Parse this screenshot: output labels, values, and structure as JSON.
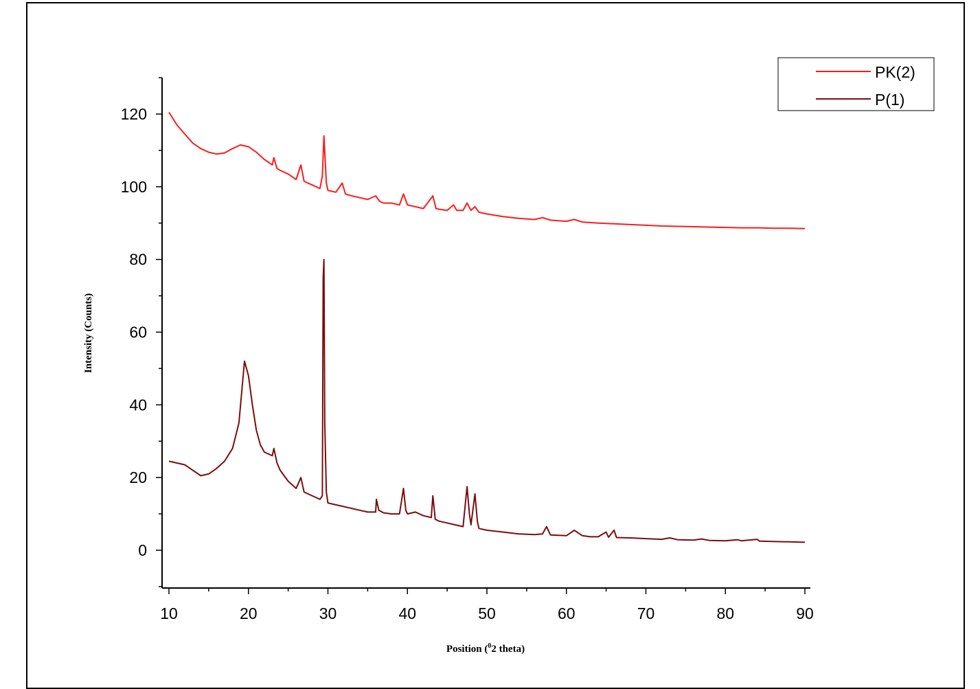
{
  "chart_data": {
    "type": "line",
    "xlabel": "Position (",
    "xlabel_sup": "0",
    "xlabel_rest": "2 theta)",
    "ylabel": "Intensity (Counts)",
    "xlim": [
      10,
      90
    ],
    "ylim": [
      -10,
      130
    ],
    "x_ticks": [
      "10",
      "20",
      "30",
      "40",
      "50",
      "60",
      "70",
      "80",
      "90"
    ],
    "y_ticks": [
      "0",
      "20",
      "40",
      "60",
      "80",
      "100",
      "120"
    ],
    "legend_position": "top-right",
    "series": [
      {
        "name": "PK(2)",
        "color": "#ff1a1a",
        "points": [
          [
            10,
            120.5
          ],
          [
            11,
            117
          ],
          [
            12,
            114.5
          ],
          [
            13,
            112
          ],
          [
            14,
            110.5
          ],
          [
            15,
            109.5
          ],
          [
            16,
            109
          ],
          [
            17,
            109.3
          ],
          [
            18,
            110.5
          ],
          [
            19,
            111.5
          ],
          [
            20,
            111
          ],
          [
            21,
            109.5
          ],
          [
            22,
            107.5
          ],
          [
            23,
            106
          ],
          [
            23.2,
            108
          ],
          [
            23.6,
            105
          ],
          [
            24,
            104.5
          ],
          [
            25,
            103.5
          ],
          [
            26,
            102
          ],
          [
            26.6,
            106
          ],
          [
            27,
            101.5
          ],
          [
            28,
            100.5
          ],
          [
            29,
            99.5
          ],
          [
            29.3,
            103
          ],
          [
            29.5,
            114
          ],
          [
            29.8,
            101
          ],
          [
            30,
            99
          ],
          [
            31,
            98.5
          ],
          [
            31.8,
            101
          ],
          [
            32.2,
            98
          ],
          [
            33,
            97.5
          ],
          [
            34,
            97
          ],
          [
            35,
            96.5
          ],
          [
            36,
            97.5
          ],
          [
            36.5,
            96
          ],
          [
            37,
            95.5
          ],
          [
            38,
            95.5
          ],
          [
            39,
            95
          ],
          [
            39.5,
            98
          ],
          [
            40,
            95
          ],
          [
            41,
            94.5
          ],
          [
            42,
            94
          ],
          [
            43.2,
            97.5
          ],
          [
            43.6,
            94
          ],
          [
            44,
            93.8
          ],
          [
            45,
            93.5
          ],
          [
            45.8,
            95
          ],
          [
            46.2,
            93.5
          ],
          [
            47,
            93.5
          ],
          [
            47.5,
            95.5
          ],
          [
            48,
            93.5
          ],
          [
            48.5,
            94.5
          ],
          [
            49,
            93
          ],
          [
            50,
            92.5
          ],
          [
            52,
            91.8
          ],
          [
            54,
            91.3
          ],
          [
            56,
            91
          ],
          [
            57,
            91.5
          ],
          [
            58,
            90.8
          ],
          [
            60,
            90.5
          ],
          [
            61,
            91
          ],
          [
            62,
            90.3
          ],
          [
            64,
            90
          ],
          [
            66,
            89.8
          ],
          [
            68,
            89.6
          ],
          [
            70,
            89.4
          ],
          [
            72,
            89.2
          ],
          [
            74,
            89.1
          ],
          [
            76,
            89
          ],
          [
            78,
            88.9
          ],
          [
            80,
            88.8
          ],
          [
            82,
            88.7
          ],
          [
            84,
            88.7
          ],
          [
            86,
            88.6
          ],
          [
            88,
            88.6
          ],
          [
            90,
            88.5
          ]
        ]
      },
      {
        "name": "P(1)",
        "color": "#7a0c0c",
        "points": [
          [
            10,
            24.5
          ],
          [
            11,
            24
          ],
          [
            12,
            23.5
          ],
          [
            13,
            22
          ],
          [
            14,
            20.5
          ],
          [
            15,
            21
          ],
          [
            16,
            22.5
          ],
          [
            17,
            24.5
          ],
          [
            18,
            28
          ],
          [
            18.8,
            35
          ],
          [
            19.5,
            52
          ],
          [
            20,
            48
          ],
          [
            20.5,
            40
          ],
          [
            21,
            33
          ],
          [
            21.5,
            29
          ],
          [
            22,
            27
          ],
          [
            23,
            26
          ],
          [
            23.2,
            28
          ],
          [
            23.6,
            24
          ],
          [
            24,
            22
          ],
          [
            25,
            19
          ],
          [
            26,
            17
          ],
          [
            26.6,
            20
          ],
          [
            27,
            16
          ],
          [
            28,
            15
          ],
          [
            29,
            14
          ],
          [
            29.3,
            15
          ],
          [
            29.4,
            75
          ],
          [
            29.5,
            80
          ],
          [
            29.6,
            35
          ],
          [
            29.8,
            16
          ],
          [
            30,
            13
          ],
          [
            31,
            12.5
          ],
          [
            32,
            12
          ],
          [
            33,
            11.5
          ],
          [
            34,
            11
          ],
          [
            35,
            10.5
          ],
          [
            36,
            10.5
          ],
          [
            36.1,
            14
          ],
          [
            36.4,
            11
          ],
          [
            37,
            10.3
          ],
          [
            38,
            10
          ],
          [
            39,
            10
          ],
          [
            39.5,
            17
          ],
          [
            39.8,
            11
          ],
          [
            40,
            10
          ],
          [
            41,
            10.5
          ],
          [
            42,
            9.5
          ],
          [
            43,
            9
          ],
          [
            43.2,
            15
          ],
          [
            43.5,
            8.5
          ],
          [
            44,
            8
          ],
          [
            45,
            7.5
          ],
          [
            46,
            7
          ],
          [
            47,
            6.5
          ],
          [
            47.5,
            17.5
          ],
          [
            47.8,
            10
          ],
          [
            48,
            7
          ],
          [
            48.5,
            15.5
          ],
          [
            48.8,
            8
          ],
          [
            49,
            6
          ],
          [
            50,
            5.5
          ],
          [
            52,
            5
          ],
          [
            54,
            4.5
          ],
          [
            56,
            4.3
          ],
          [
            57,
            4.5
          ],
          [
            57.5,
            6.5
          ],
          [
            58,
            4.2
          ],
          [
            60,
            4
          ],
          [
            61,
            5.5
          ],
          [
            62,
            4
          ],
          [
            63,
            3.7
          ],
          [
            64,
            3.7
          ],
          [
            65,
            5
          ],
          [
            65.3,
            3.6
          ],
          [
            66,
            5.5
          ],
          [
            66.3,
            3.5
          ],
          [
            68,
            3.4
          ],
          [
            70,
            3.2
          ],
          [
            72,
            3
          ],
          [
            73,
            3.4
          ],
          [
            74,
            2.9
          ],
          [
            76,
            2.8
          ],
          [
            77,
            3.1
          ],
          [
            78,
            2.7
          ],
          [
            80,
            2.6
          ],
          [
            81.5,
            2.9
          ],
          [
            82,
            2.6
          ],
          [
            84,
            3
          ],
          [
            84.3,
            2.5
          ],
          [
            86,
            2.4
          ],
          [
            88,
            2.3
          ],
          [
            90,
            2.2
          ]
        ]
      }
    ]
  }
}
